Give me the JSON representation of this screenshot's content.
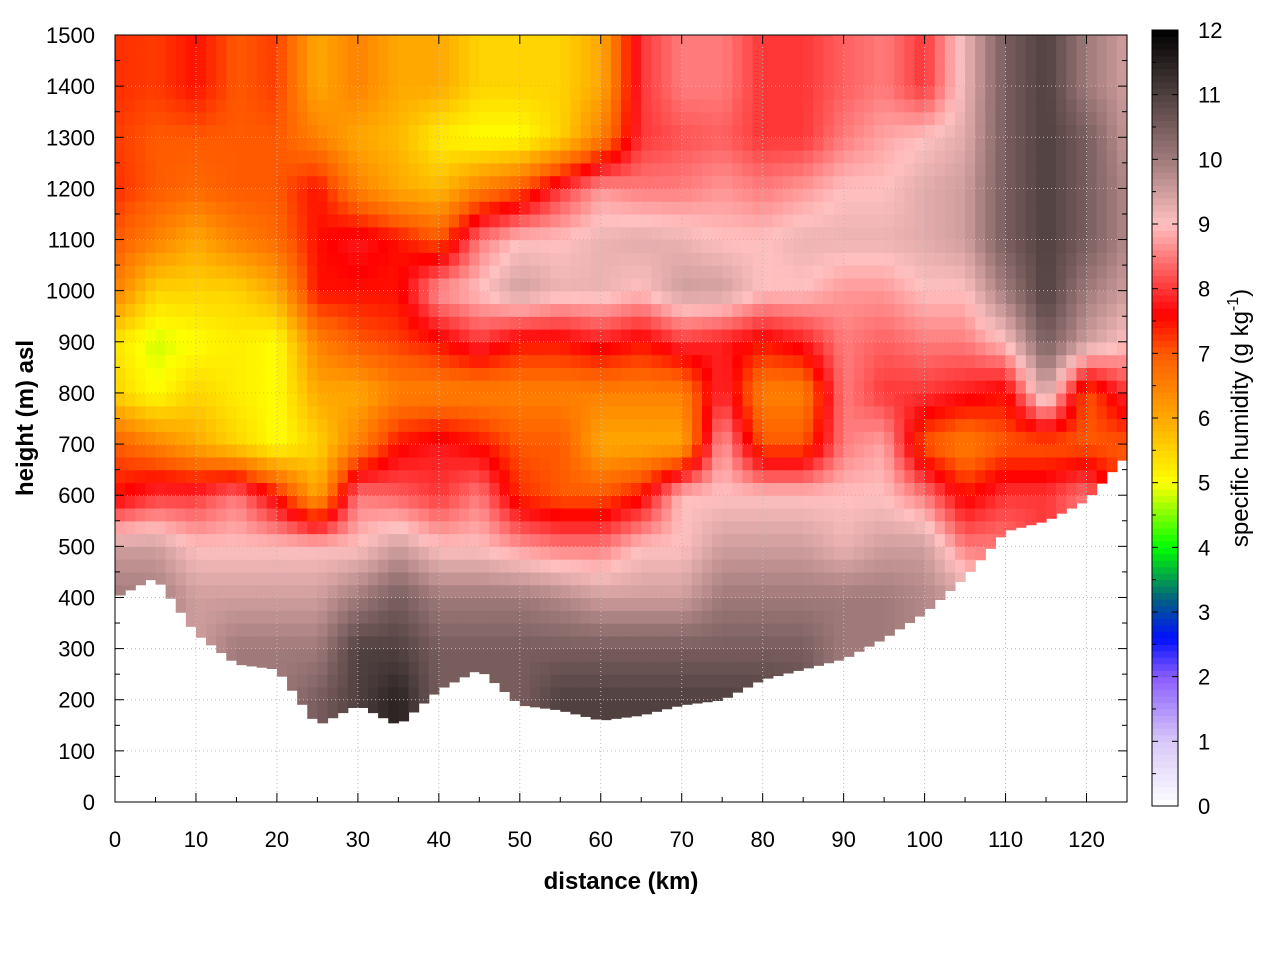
{
  "chart_data": {
    "type": "heatmap",
    "title": "",
    "xlabel": "distance (km)",
    "ylabel": "height (m) asl",
    "colorbar_label": "specific humidity (g kg",
    "colorbar_label_sup": "-1",
    "colorbar_label_end": ")",
    "xlim": [
      0,
      125
    ],
    "ylim": [
      0,
      1500
    ],
    "zlim": [
      0,
      12
    ],
    "grid": true,
    "x_ticks": [
      "0",
      "10",
      "20",
      "30",
      "40",
      "50",
      "60",
      "70",
      "80",
      "90",
      "100",
      "110",
      "120"
    ],
    "y_ticks": [
      "0",
      "100",
      "200",
      "300",
      "400",
      "500",
      "600",
      "700",
      "800",
      "900",
      "1000",
      "1100",
      "1200",
      "1300",
      "1400",
      "1500"
    ],
    "colorbar_ticks": [
      "0",
      "1",
      "2",
      "3",
      "4",
      "5",
      "6",
      "7",
      "8",
      "9",
      "10",
      "11",
      "12"
    ],
    "colormap": [
      {
        "z": 0,
        "color": "#ffffff"
      },
      {
        "z": 1,
        "color": "#d8c8f8"
      },
      {
        "z": 2,
        "color": "#8a5cff"
      },
      {
        "z": 2.6,
        "color": "#0010ff"
      },
      {
        "z": 3.2,
        "color": "#006080"
      },
      {
        "z": 4,
        "color": "#00ff00"
      },
      {
        "z": 5,
        "color": "#ffff00"
      },
      {
        "z": 6,
        "color": "#ffa800"
      },
      {
        "z": 7,
        "color": "#ff5a00"
      },
      {
        "z": 7.6,
        "color": "#ff0000"
      },
      {
        "z": 9,
        "color": "#ffc0c0"
      },
      {
        "z": 10,
        "color": "#a07a7a"
      },
      {
        "z": 11,
        "color": "#504040"
      },
      {
        "z": 12,
        "color": "#000000"
      }
    ],
    "x": [
      0,
      5,
      10,
      15,
      20,
      25,
      30,
      35,
      40,
      45,
      50,
      55,
      60,
      65,
      70,
      75,
      80,
      85,
      90,
      95,
      100,
      105,
      110,
      115,
      120,
      125
    ],
    "y": [
      100,
      200,
      300,
      400,
      500,
      600,
      700,
      800,
      900,
      1000,
      1100,
      1200,
      1300,
      1400,
      1500
    ],
    "lower_data_limit_m": [
      400,
      440,
      330,
      270,
      260,
      150,
      190,
      150,
      220,
      260,
      190,
      180,
      160,
      170,
      190,
      200,
      240,
      260,
      280,
      320,
      370,
      440,
      530,
      550,
      590,
      680
    ],
    "z_by_x": [
      [
        null,
        null,
        null,
        10,
        9.5,
        7.5,
        7,
        5.5,
        5.3,
        6.5,
        7,
        7.3,
        7.2,
        7.3,
        7.3
      ],
      [
        null,
        null,
        null,
        10,
        9.5,
        8,
        6.5,
        5,
        4.8,
        5.5,
        6.5,
        7,
        7,
        7.2,
        7.2
      ],
      [
        null,
        null,
        9.5,
        9.5,
        9,
        8,
        6,
        5.5,
        5,
        5.5,
        6,
        6.8,
        7,
        7.5,
        7.5
      ],
      [
        null,
        null,
        10,
        9.5,
        9,
        8.5,
        5.5,
        5.2,
        5.2,
        5.5,
        6.5,
        7,
        7,
        7,
        7
      ],
      [
        null,
        null,
        10,
        9.5,
        9,
        7.5,
        5,
        5,
        5,
        6,
        6.8,
        7,
        7,
        7.2,
        7.2
      ],
      [
        null,
        10.5,
        10,
        9.5,
        9,
        6,
        5.5,
        6,
        6.5,
        7.5,
        7.5,
        7.5,
        6.5,
        6,
        6
      ],
      [
        null,
        11,
        11,
        10,
        9,
        8.5,
        6.5,
        6,
        7,
        7.5,
        7.8,
        6.5,
        6,
        6.5,
        6.5
      ],
      [
        null,
        11.5,
        11,
        10.5,
        9.5,
        8.3,
        7.5,
        6.5,
        7.2,
        7.5,
        7.5,
        6,
        5.8,
        6,
        6
      ],
      [
        null,
        10.5,
        10.5,
        10,
        9,
        8,
        7.8,
        6.5,
        7.5,
        8.7,
        7,
        5.8,
        5.2,
        6,
        6
      ],
      [
        null,
        10.5,
        10.5,
        10,
        9,
        8.5,
        7.5,
        6.5,
        8,
        9,
        8.5,
        6.5,
        5,
        5.5,
        5.5
      ],
      [
        null,
        10.5,
        10.5,
        10,
        8.7,
        7.3,
        7,
        6.5,
        7.5,
        9.5,
        9,
        7,
        5,
        5.5,
        5.5
      ],
      [
        null,
        11,
        10.5,
        9.8,
        8.5,
        7,
        7,
        6.5,
        7.5,
        9.2,
        9,
        8,
        5.5,
        5.5,
        5.5
      ],
      [
        null,
        11,
        10.5,
        9.5,
        8.5,
        7,
        6,
        6.5,
        7.8,
        9.2,
        9.2,
        8.7,
        6.5,
        6,
        6
      ],
      [
        null,
        11,
        10.5,
        9.5,
        9,
        7.5,
        6,
        6.5,
        7.5,
        9,
        9.3,
        8.5,
        8,
        8,
        8
      ],
      [
        null,
        11,
        10.5,
        9.5,
        9,
        9,
        6,
        6.5,
        8,
        9.5,
        9.2,
        8.5,
        8.2,
        8.5,
        8.5
      ],
      [
        null,
        11,
        10.5,
        10,
        9.5,
        9,
        8.8,
        8,
        7.8,
        9.5,
        9,
        8.7,
        8.3,
        8.5,
        8.5
      ],
      [
        null,
        11,
        10.5,
        10,
        9.5,
        9,
        7,
        6.5,
        7.5,
        9,
        9,
        8.5,
        8,
        8,
        8
      ],
      [
        null,
        10.8,
        10.5,
        10,
        9.5,
        9,
        7,
        6.5,
        7.8,
        9,
        9.2,
        8.7,
        8,
        8,
        8
      ],
      [
        null,
        null,
        10,
        10,
        9.2,
        9,
        8.5,
        8.5,
        8.5,
        8.7,
        9.2,
        9,
        8.5,
        8.3,
        8.3
      ],
      [
        null,
        null,
        10,
        10,
        9.5,
        9,
        8.8,
        8,
        8.3,
        8.7,
        9.2,
        9,
        8.8,
        8.5,
        8.5
      ],
      [
        null,
        null,
        null,
        9.8,
        9.5,
        8.5,
        7,
        8,
        8.5,
        9,
        9.3,
        9.3,
        9,
        8,
        8
      ],
      [
        null,
        null,
        null,
        9.5,
        8.5,
        7.5,
        6.5,
        7.8,
        8.5,
        9,
        9.5,
        9.5,
        9.3,
        9.2,
        9.2
      ],
      [
        null,
        null,
        null,
        null,
        8.5,
        8,
        7,
        7.5,
        9,
        10,
        10.5,
        10.5,
        10.5,
        10.5,
        10.5
      ],
      [
        null,
        null,
        null,
        null,
        null,
        8,
        7,
        9.5,
        10.5,
        11,
        11,
        11,
        11,
        11,
        11
      ],
      [
        null,
        null,
        null,
        null,
        null,
        8.5,
        7,
        7,
        9.5,
        10,
        10.5,
        10.5,
        10.5,
        10,
        10
      ],
      [
        null,
        null,
        null,
        null,
        null,
        null,
        7,
        8,
        9,
        9.5,
        9.8,
        9.8,
        9.6,
        9.5,
        9.5
      ]
    ]
  }
}
